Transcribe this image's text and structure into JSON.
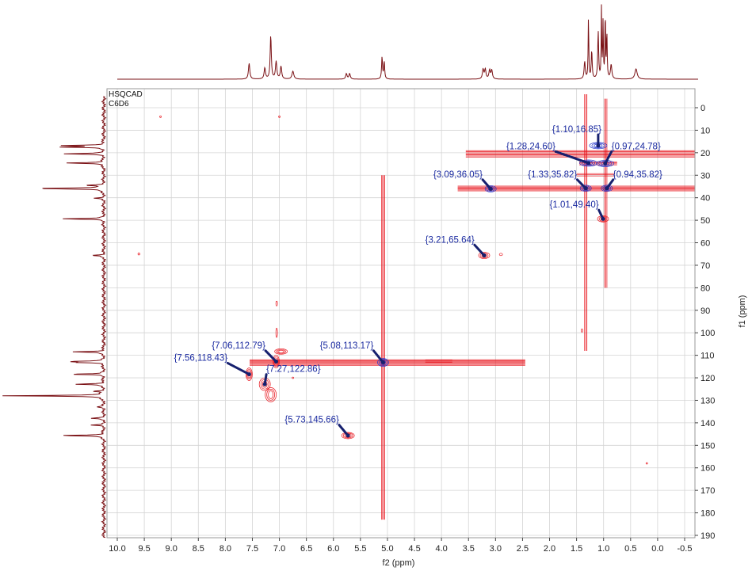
{
  "chart_data": {
    "type": "heatmap",
    "experiment": "HSQCAD",
    "solvent": "C6D6",
    "xlabel": "f2 (ppm)",
    "ylabel": "f1 (ppm)",
    "xlim": [
      10.0,
      -0.7
    ],
    "ylim": [
      -5,
      190
    ],
    "x_ticks": [
      "10.0",
      "9.5",
      "9.0",
      "8.5",
      "8.0",
      "7.5",
      "7.0",
      "6.5",
      "6.0",
      "5.5",
      "5.0",
      "4.5",
      "4.0",
      "3.5",
      "3.0",
      "2.5",
      "2.0",
      "1.5",
      "1.0",
      "0.5",
      "0.0",
      "-0.5"
    ],
    "y_ticks": [
      "0",
      "10",
      "20",
      "30",
      "40",
      "50",
      "60",
      "70",
      "80",
      "90",
      "100",
      "110",
      "120",
      "130",
      "140",
      "150",
      "160",
      "170",
      "180",
      "190"
    ],
    "grid": true,
    "colors": {
      "contour": "#e8141c",
      "contour_alt": "#2233cc",
      "projection": "#7a1014",
      "label": "#1a2aa0",
      "arrow": "#16206e",
      "grid": "#d4d4d4",
      "frame": "#9a9a9a"
    },
    "peaks": [
      {
        "label": "{1.10,16.85}",
        "x": 1.1,
        "y": 16.85
      },
      {
        "label": "{1.28,24.60}",
        "x": 1.28,
        "y": 24.6
      },
      {
        "label": "{0.97,24.78}",
        "x": 0.97,
        "y": 24.78
      },
      {
        "label": "{3.09,36.05}",
        "x": 3.09,
        "y": 36.05
      },
      {
        "label": "{1.33,35.82}",
        "x": 1.33,
        "y": 35.82
      },
      {
        "label": "{0.94,35.82}",
        "x": 0.94,
        "y": 35.82
      },
      {
        "label": "{1.01,49.40}",
        "x": 1.01,
        "y": 49.4
      },
      {
        "label": "{3.21,65.64}",
        "x": 3.21,
        "y": 65.64
      },
      {
        "label": "{7.06,112.79}",
        "x": 7.06,
        "y": 112.79
      },
      {
        "label": "{5.08,113.17}",
        "x": 5.08,
        "y": 113.17
      },
      {
        "label": "{7.56,118.43}",
        "x": 7.56,
        "y": 118.43
      },
      {
        "label": "{7.27,122.86}",
        "x": 7.27,
        "y": 122.86
      },
      {
        "label": "{5.73,145.66}",
        "x": 5.73,
        "y": 145.66
      }
    ],
    "proton_projection_peaks_ppm": [
      7.56,
      7.27,
      7.16,
      7.06,
      6.97,
      6.75,
      5.73,
      5.08,
      3.21,
      3.09,
      1.33,
      1.28,
      1.1,
      1.01,
      0.97,
      0.94,
      0.4
    ],
    "carbon_projection_peaks_ppm": [
      16.85,
      20.5,
      24.6,
      35.82,
      36.05,
      40.2,
      49.4,
      65.64,
      108.5,
      112.79,
      113.17,
      118.43,
      122.86,
      128.0,
      133.0,
      138.0,
      145.66
    ]
  }
}
